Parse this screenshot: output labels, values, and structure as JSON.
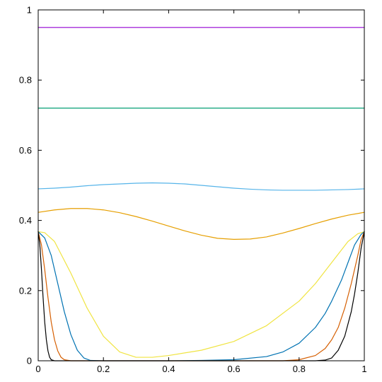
{
  "chart_data": {
    "type": "line",
    "title": "",
    "xlabel": "",
    "ylabel": "",
    "xlim": [
      0,
      1
    ],
    "ylim": [
      0,
      1
    ],
    "grid": false,
    "legend": "none",
    "x_ticks": [
      "0",
      "0.2",
      "0.4",
      "0.6",
      "0.8",
      "1"
    ],
    "x_tick_values": [
      0,
      0.2,
      0.4,
      0.6,
      0.8,
      1
    ],
    "y_ticks": [
      "0",
      "0.2",
      "0.4",
      "0.6",
      "0.8",
      "1"
    ],
    "y_tick_values": [
      0,
      0.2,
      0.4,
      0.6,
      0.8,
      1
    ],
    "series": [
      {
        "color": "#9400d3",
        "x": [
          0,
          1
        ],
        "y": [
          0.95,
          0.95
        ]
      },
      {
        "color": "#009e73",
        "x": [
          0,
          1
        ],
        "y": [
          0.72,
          0.72
        ]
      },
      {
        "color": "#56b4e9",
        "x": [
          0,
          0.05,
          0.1,
          0.15,
          0.2,
          0.25,
          0.3,
          0.35,
          0.4,
          0.45,
          0.5,
          0.55,
          0.6,
          0.65,
          0.7,
          0.75,
          0.8,
          0.85,
          0.9,
          0.95,
          1
        ],
        "y": [
          0.49,
          0.492,
          0.495,
          0.499,
          0.502,
          0.504,
          0.506,
          0.507,
          0.506,
          0.504,
          0.5,
          0.496,
          0.492,
          0.489,
          0.487,
          0.486,
          0.486,
          0.486,
          0.487,
          0.488,
          0.49
        ]
      },
      {
        "color": "#e69f00",
        "x": [
          0,
          0.05,
          0.1,
          0.15,
          0.2,
          0.25,
          0.3,
          0.35,
          0.4,
          0.45,
          0.5,
          0.55,
          0.6,
          0.65,
          0.7,
          0.75,
          0.8,
          0.85,
          0.9,
          0.95,
          1
        ],
        "y": [
          0.423,
          0.43,
          0.434,
          0.434,
          0.43,
          0.422,
          0.411,
          0.398,
          0.384,
          0.37,
          0.358,
          0.349,
          0.346,
          0.347,
          0.353,
          0.364,
          0.377,
          0.391,
          0.404,
          0.415,
          0.423
        ]
      },
      {
        "color": "#f0e442",
        "x": [
          0,
          0.02,
          0.05,
          0.1,
          0.15,
          0.2,
          0.25,
          0.3,
          0.35,
          0.4,
          0.5,
          0.6,
          0.7,
          0.8,
          0.85,
          0.9,
          0.95,
          0.98,
          1
        ],
        "y": [
          0.368,
          0.365,
          0.34,
          0.25,
          0.15,
          0.07,
          0.025,
          0.01,
          0.01,
          0.015,
          0.03,
          0.055,
          0.1,
          0.17,
          0.22,
          0.28,
          0.34,
          0.362,
          0.368
        ]
      },
      {
        "color": "#0072b2",
        "x": [
          0,
          0.02,
          0.04,
          0.06,
          0.08,
          0.1,
          0.12,
          0.14,
          0.16,
          0.2,
          0.4,
          0.5,
          0.6,
          0.7,
          0.75,
          0.8,
          0.85,
          0.88,
          0.9,
          0.93,
          0.95,
          0.97,
          0.99,
          1
        ],
        "y": [
          0.368,
          0.35,
          0.3,
          0.22,
          0.14,
          0.075,
          0.03,
          0.008,
          0.001,
          0,
          0,
          0.001,
          0.003,
          0.012,
          0.025,
          0.05,
          0.095,
          0.135,
          0.17,
          0.23,
          0.28,
          0.33,
          0.36,
          0.368
        ]
      },
      {
        "color": "#d55e00",
        "x": [
          0,
          0.01,
          0.02,
          0.03,
          0.04,
          0.05,
          0.06,
          0.07,
          0.08,
          0.1,
          0.2,
          0.5,
          0.75,
          0.8,
          0.85,
          0.88,
          0.9,
          0.92,
          0.94,
          0.96,
          0.98,
          0.99,
          1
        ],
        "y": [
          0.368,
          0.33,
          0.26,
          0.18,
          0.11,
          0.06,
          0.028,
          0.01,
          0.003,
          0,
          0,
          0,
          0,
          0.003,
          0.015,
          0.035,
          0.06,
          0.095,
          0.15,
          0.22,
          0.3,
          0.345,
          0.368
        ]
      },
      {
        "color": "#000000",
        "x": [
          0,
          0.005,
          0.01,
          0.015,
          0.02,
          0.025,
          0.03,
          0.035,
          0.04,
          0.05,
          0.1,
          0.5,
          0.85,
          0.88,
          0.9,
          0.92,
          0.94,
          0.96,
          0.97,
          0.98,
          0.99,
          1
        ],
        "y": [
          0.368,
          0.33,
          0.26,
          0.18,
          0.11,
          0.06,
          0.028,
          0.01,
          0.003,
          0,
          0,
          0,
          0,
          0.002,
          0.008,
          0.03,
          0.07,
          0.14,
          0.19,
          0.25,
          0.32,
          0.368
        ]
      }
    ]
  }
}
